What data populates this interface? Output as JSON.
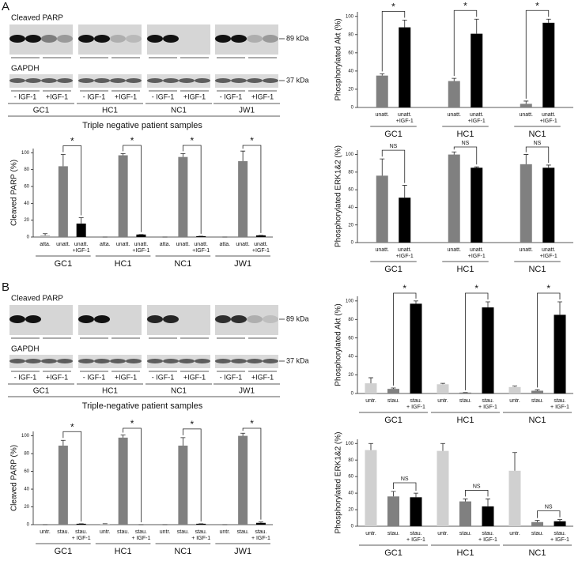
{
  "panels": [
    {
      "label": "A",
      "blot": {
        "labels": [
          "Cleaved PARP",
          "GAPDH"
        ],
        "markers": [
          "89 kDa",
          "37 kDa"
        ],
        "lanes": [
          "- IGF-1",
          "+IGF-1"
        ],
        "samples": [
          "GC1",
          "HC1",
          "NC1",
          "JW1"
        ],
        "caption": "Triple negative patient samples"
      }
    },
    {
      "label": "B",
      "blot": {
        "labels": [
          "Cleaved PARP",
          "GAPDH"
        ],
        "markers": [
          "89 kDa",
          "37 kDa"
        ],
        "lanes": [
          "- IGF-1",
          "+IGF-1"
        ],
        "samples": [
          "GC1",
          "HC1",
          "NC1",
          "JW1"
        ],
        "caption": "Triple-negative patient samples"
      }
    }
  ],
  "chart_data": [
    {
      "type": "bar",
      "y_label": "Cleaved PARP (%)",
      "categories": [
        "GC1",
        "HC1",
        "NC1",
        "JW1"
      ],
      "series": [
        {
          "name": "atta.",
          "color": "#b4b4b4",
          "values": [
            2,
            0,
            0,
            0
          ],
          "errors": [
            2,
            0,
            0,
            0
          ]
        },
        {
          "name": "unatt.",
          "color": "#808080",
          "values": [
            84,
            97,
            95,
            90
          ],
          "errors": [
            14,
            2,
            4,
            12
          ]
        },
        {
          "name": "unatt.\n+IGF-1",
          "color": "#000000",
          "values": [
            16,
            3,
            1,
            2
          ],
          "errors": [
            7,
            0,
            0,
            0
          ]
        }
      ],
      "annotations": [
        {
          "category": 0,
          "series": [
            1,
            2
          ],
          "label": "*"
        },
        {
          "category": 1,
          "series": [
            1,
            2
          ],
          "label": "*"
        },
        {
          "category": 2,
          "series": [
            1,
            2
          ],
          "label": "*"
        },
        {
          "category": 3,
          "series": [
            1,
            2
          ],
          "label": "*"
        }
      ],
      "ylim": [
        0,
        105
      ],
      "yticks": [
        0,
        20,
        40,
        60,
        80,
        100
      ]
    },
    {
      "type": "bar",
      "y_label": "Phosphorylated Akt (%)",
      "categories": [
        "GC1",
        "HC1",
        "NC1"
      ],
      "series": [
        {
          "name": "unatt.",
          "color": "#808080",
          "values": [
            35,
            29,
            4
          ],
          "errors": [
            2,
            3,
            3
          ]
        },
        {
          "name": "unatt.\n+IGF-1",
          "color": "#000000",
          "values": [
            88,
            81,
            93
          ],
          "errors": [
            8,
            16,
            4
          ]
        }
      ],
      "annotations": [
        {
          "category": 0,
          "series": [
            0,
            1
          ],
          "label": "*"
        },
        {
          "category": 1,
          "series": [
            0,
            1
          ],
          "label": "*"
        },
        {
          "category": 2,
          "series": [
            0,
            1
          ],
          "label": "*"
        }
      ],
      "ylim": [
        0,
        105
      ],
      "yticks": [
        0,
        20,
        40,
        60,
        80,
        100
      ]
    },
    {
      "type": "bar",
      "y_label": "Phosphorylated ERK1&2 (%)",
      "categories": [
        "GC1",
        "HC1",
        "NC1"
      ],
      "series": [
        {
          "name": "unatt.",
          "color": "#808080",
          "values": [
            76,
            100,
            89
          ],
          "errors": [
            19,
            3,
            11
          ]
        },
        {
          "name": "unatt.\n+IGF-1",
          "color": "#000000",
          "values": [
            51,
            85,
            85
          ],
          "errors": [
            14,
            1,
            3
          ]
        }
      ],
      "annotations": [
        {
          "category": 0,
          "series": [
            0,
            1
          ],
          "label": "NS"
        },
        {
          "category": 1,
          "series": [
            0,
            1
          ],
          "label": "NS"
        },
        {
          "category": 2,
          "series": [
            0,
            1
          ],
          "label": "NS"
        }
      ],
      "ylim": [
        0,
        105
      ],
      "yticks": [
        0,
        20,
        40,
        60,
        80,
        100
      ]
    },
    {
      "type": "bar",
      "y_label": "Cleaved PARP (%)",
      "categories": [
        "GC1",
        "HC1",
        "NC1",
        "JW1"
      ],
      "series": [
        {
          "name": "untr.",
          "color": "#d0d0d0",
          "values": [
            0,
            1,
            0,
            0
          ],
          "errors": [
            0,
            0,
            0,
            0
          ]
        },
        {
          "name": "stau.",
          "color": "#808080",
          "values": [
            89,
            98,
            89,
            100
          ],
          "errors": [
            6,
            3,
            9,
            3
          ]
        },
        {
          "name": "stau.\n+ IGF-1",
          "color": "#000000",
          "values": [
            1,
            0,
            1,
            2
          ],
          "errors": [
            0,
            0,
            0,
            1
          ]
        }
      ],
      "annotations": [
        {
          "category": 0,
          "series": [
            1,
            2
          ],
          "label": "*"
        },
        {
          "category": 1,
          "series": [
            1,
            2
          ],
          "label": "*"
        },
        {
          "category": 2,
          "series": [
            1,
            2
          ],
          "label": "*"
        },
        {
          "category": 3,
          "series": [
            1,
            2
          ],
          "label": "*"
        }
      ],
      "ylim": [
        0,
        105
      ],
      "yticks": [
        0,
        20,
        40,
        60,
        80,
        100
      ]
    },
    {
      "type": "bar",
      "y_label": "Phosphorylated Akt (%)",
      "categories": [
        "GC1",
        "HC1",
        "NC1"
      ],
      "series": [
        {
          "name": "untr.",
          "color": "#d0d0d0",
          "values": [
            11,
            10,
            7
          ],
          "errors": [
            6,
            1,
            1
          ]
        },
        {
          "name": "stau.",
          "color": "#808080",
          "values": [
            5,
            1,
            3
          ],
          "errors": [
            1,
            0,
            1
          ]
        },
        {
          "name": "stau.\n+ IGF-1",
          "color": "#000000",
          "values": [
            97,
            93,
            85
          ],
          "errors": [
            3,
            6,
            14
          ]
        }
      ],
      "annotations": [
        {
          "category": 0,
          "series": [
            1,
            2
          ],
          "label": "*"
        },
        {
          "category": 1,
          "series": [
            1,
            2
          ],
          "label": "*"
        },
        {
          "category": 2,
          "series": [
            1,
            2
          ],
          "label": "*"
        }
      ],
      "ylim": [
        0,
        105
      ],
      "yticks": [
        0,
        20,
        40,
        60,
        80,
        100
      ]
    },
    {
      "type": "bar",
      "y_label": "Phosphorylated ERK1&2 (%)",
      "categories": [
        "GC1",
        "HC1",
        "NC1"
      ],
      "series": [
        {
          "name": "untr.",
          "color": "#d0d0d0",
          "values": [
            92,
            91,
            67
          ],
          "errors": [
            8,
            9,
            22
          ]
        },
        {
          "name": "stau.",
          "color": "#808080",
          "values": [
            36,
            30,
            5
          ],
          "errors": [
            6,
            3,
            2
          ]
        },
        {
          "name": "stau.\n+ IGF-1",
          "color": "#000000",
          "values": [
            35,
            24,
            6
          ],
          "errors": [
            5,
            9,
            2
          ]
        }
      ],
      "annotations": [
        {
          "category": 0,
          "series": [
            1,
            2
          ],
          "label": "NS"
        },
        {
          "category": 1,
          "series": [
            1,
            2
          ],
          "label": "NS"
        },
        {
          "category": 2,
          "series": [
            1,
            2
          ],
          "label": "NS"
        }
      ],
      "ylim": [
        0,
        105
      ],
      "yticks": [
        0,
        20,
        40,
        60,
        80,
        100
      ]
    }
  ]
}
